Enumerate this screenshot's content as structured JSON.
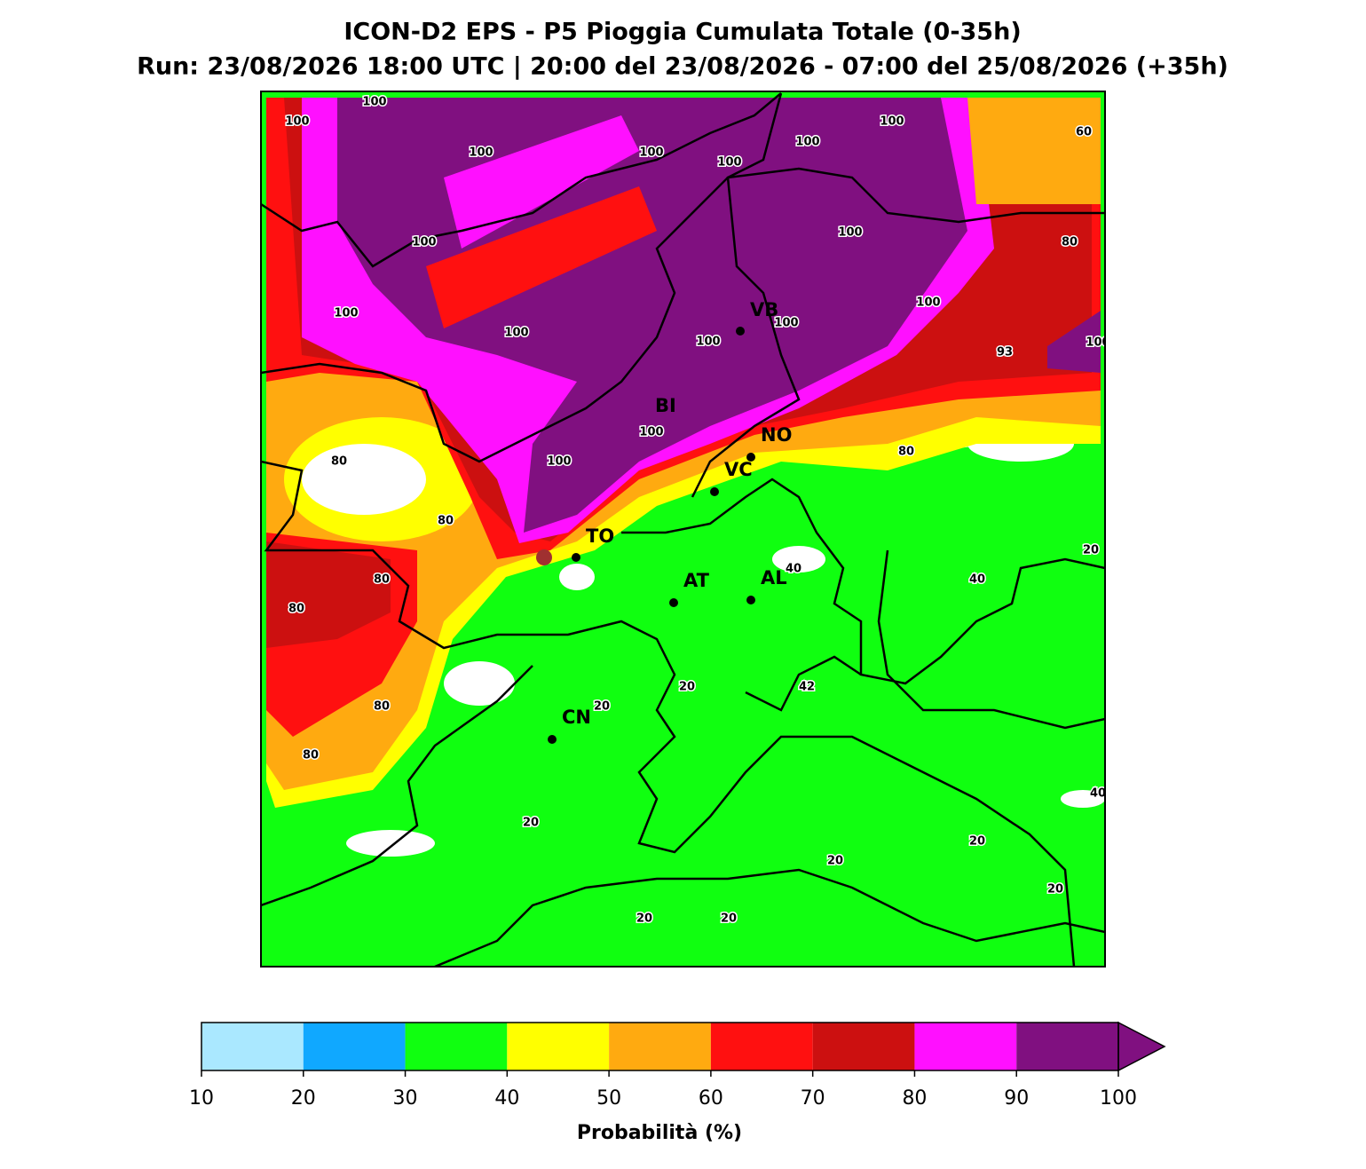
{
  "title": "ICON-D2 EPS - P5 Pioggia Cumulata Totale (0-35h)",
  "subtitle": "Run: 23/08/2026 18:00 UTC | 20:00 del 23/08/2026 - 07:00 del 25/08/2026 (+35h)",
  "cities": [
    "VB",
    "BI",
    "NO",
    "VC",
    "TO",
    "AT",
    "AL",
    "CN"
  ],
  "contour_labels": [
    100,
    100,
    100,
    100,
    100,
    100,
    100,
    60,
    100,
    100,
    80,
    100,
    100,
    100,
    100,
    100,
    93,
    100,
    100,
    100,
    80,
    80,
    80,
    20,
    40,
    80,
    40,
    80,
    20,
    42,
    20,
    80,
    80,
    40,
    20,
    20,
    20,
    20,
    20,
    20
  ],
  "colorbar": {
    "label": "Probabilità (%)",
    "ticks": [
      10,
      20,
      30,
      40,
      50,
      60,
      70,
      80,
      90,
      100
    ],
    "colors": [
      "#aae8ff",
      "#10a8ff",
      "#10ff10",
      "#ffff00",
      "#ffaa10",
      "#ff1010",
      "#cc1010",
      "#ff10ff",
      "#801080"
    ],
    "extend": "max"
  }
}
